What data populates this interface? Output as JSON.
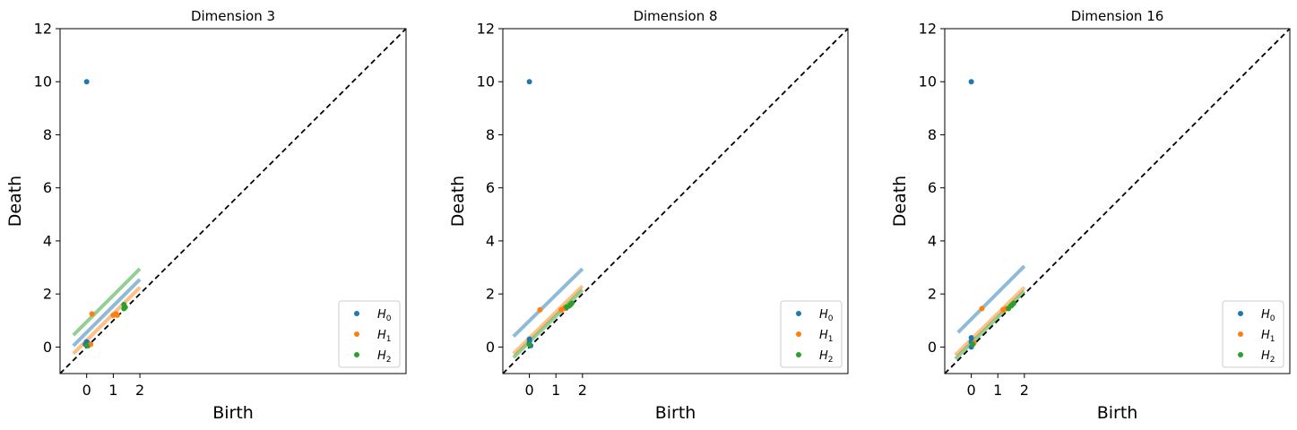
{
  "chart_data": [
    {
      "type": "scatter",
      "title": "Dimension 3",
      "xlabel": "Birth",
      "ylabel": "Death",
      "xlim": [
        -1,
        12
      ],
      "ylim": [
        -1,
        12
      ],
      "xticks": [
        0,
        1,
        2
      ],
      "yticks": [
        0,
        2,
        4,
        6,
        8,
        10,
        12
      ],
      "diagonal": true,
      "legend_position": "lower-right",
      "series": [
        {
          "name": "H0",
          "sub": "0",
          "color": "#1f77b4",
          "points": [
            [
              0,
              10
            ],
            [
              0,
              0.2
            ],
            [
              0.05,
              0.15
            ],
            [
              0.1,
              0.1
            ],
            [
              -0.05,
              0.1
            ],
            [
              0.05,
              0.05
            ]
          ],
          "band": [
            [
              -0.5,
              0.05
            ],
            [
              2.0,
              2.55
            ]
          ]
        },
        {
          "name": "H1",
          "sub": "1",
          "color": "#ff7f0e",
          "points": [
            [
              0.2,
              1.25
            ],
            [
              1.0,
              1.2
            ],
            [
              1.1,
              1.25
            ],
            [
              0.15,
              0.1
            ],
            [
              1.15,
              1.2
            ]
          ],
          "band": [
            [
              -0.5,
              -0.25
            ],
            [
              2.0,
              2.25
            ]
          ]
        },
        {
          "name": "H2",
          "sub": "2",
          "color": "#2ca02c",
          "points": [
            [
              1.4,
              1.45
            ],
            [
              1.45,
              1.5
            ],
            [
              0.0,
              0.05
            ],
            [
              1.4,
              1.6
            ]
          ],
          "band": [
            [
              -0.5,
              0.45
            ],
            [
              2.0,
              2.95
            ]
          ]
        }
      ]
    },
    {
      "type": "scatter",
      "title": "Dimension 8",
      "xlabel": "Birth",
      "ylabel": "Death",
      "xlim": [
        -1,
        12
      ],
      "ylim": [
        -1,
        12
      ],
      "xticks": [
        0,
        1,
        2
      ],
      "yticks": [
        0,
        2,
        4,
        6,
        8,
        10,
        12
      ],
      "diagonal": true,
      "legend_position": "lower-right",
      "series": [
        {
          "name": "H0",
          "sub": "0",
          "color": "#1f77b4",
          "points": [
            [
              0,
              10
            ],
            [
              0,
              0.3
            ],
            [
              0,
              0.2
            ],
            [
              0,
              0.1
            ],
            [
              0.05,
              0.05
            ]
          ],
          "band": [
            [
              -0.6,
              0.4
            ],
            [
              2.0,
              2.95
            ]
          ]
        },
        {
          "name": "H1",
          "sub": "1",
          "color": "#ff7f0e",
          "points": [
            [
              0.4,
              1.4
            ],
            [
              1.2,
              1.4
            ],
            [
              1.3,
              1.45
            ],
            [
              1.35,
              1.5
            ]
          ],
          "band": [
            [
              -0.6,
              -0.25
            ],
            [
              2.0,
              2.3
            ]
          ]
        },
        {
          "name": "H2",
          "sub": "2",
          "color": "#2ca02c",
          "points": [
            [
              1.5,
              1.55
            ],
            [
              1.6,
              1.65
            ],
            [
              1.4,
              1.5
            ],
            [
              0.0,
              0.1
            ],
            [
              1.55,
              1.6
            ]
          ],
          "band": [
            [
              -0.6,
              -0.4
            ],
            [
              2.0,
              2.15
            ]
          ]
        }
      ]
    },
    {
      "type": "scatter",
      "title": "Dimension 16",
      "xlabel": "Birth",
      "ylabel": "Death",
      "xlim": [
        -1,
        12
      ],
      "ylim": [
        -1,
        12
      ],
      "xticks": [
        0,
        1,
        2
      ],
      "yticks": [
        0,
        2,
        4,
        6,
        8,
        10,
        12
      ],
      "diagonal": true,
      "legend_position": "lower-right",
      "series": [
        {
          "name": "H0",
          "sub": "0",
          "color": "#1f77b4",
          "points": [
            [
              0,
              10
            ],
            [
              0,
              0.35
            ],
            [
              0,
              0.2
            ],
            [
              0.05,
              0.1
            ],
            [
              0.0,
              0.0
            ]
          ],
          "band": [
            [
              -0.5,
              0.55
            ],
            [
              2.0,
              3.05
            ]
          ]
        },
        {
          "name": "H1",
          "sub": "1",
          "color": "#ff7f0e",
          "points": [
            [
              0.4,
              1.45
            ],
            [
              1.2,
              1.4
            ],
            [
              1.3,
              1.45
            ],
            [
              0.1,
              0.15
            ]
          ],
          "band": [
            [
              -0.6,
              -0.3
            ],
            [
              2.0,
              2.25
            ]
          ]
        },
        {
          "name": "H2",
          "sub": "2",
          "color": "#2ca02c",
          "points": [
            [
              1.5,
              1.55
            ],
            [
              1.6,
              1.65
            ],
            [
              1.4,
              1.45
            ],
            [
              0.05,
              0.1
            ],
            [
              1.55,
              1.6
            ]
          ],
          "band": [
            [
              -0.6,
              -0.45
            ],
            [
              2.0,
              2.1
            ]
          ]
        }
      ]
    }
  ]
}
